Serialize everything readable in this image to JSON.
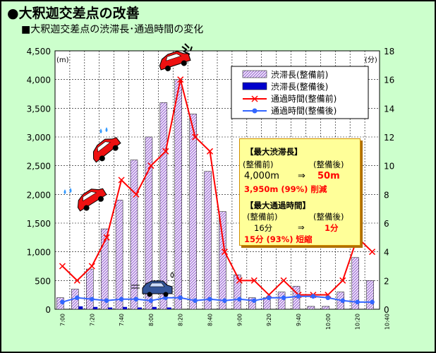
{
  "header": {
    "title": "●大釈迦交差点の改善",
    "subtitle": "■大釈迦交差点の渋滞長･通過時間の変化"
  },
  "chart_data": {
    "type": "bar",
    "y_left_unit": "(m)",
    "y_right_unit": "(分)",
    "ylim_left": [
      0,
      4500
    ],
    "ylim_right": [
      0,
      18
    ],
    "yticks_left": [
      "0",
      "500",
      "1,000",
      "1,500",
      "2,000",
      "2,500",
      "3,000",
      "3,500",
      "4,000",
      "4,500"
    ],
    "yticks_right": [
      "0",
      "2",
      "4",
      "6",
      "8",
      "10",
      "12",
      "14",
      "16",
      "18"
    ],
    "x_tick_labels": [
      "7:00",
      "7:20",
      "7:40",
      "8:00",
      "8:20",
      "8:40",
      "9:00",
      "9:20",
      "9:40",
      "10:00",
      "10:20",
      "10:40"
    ],
    "x_count": 22,
    "series": [
      {
        "name": "渋滞長(整備前)",
        "kind": "bar",
        "axis": "left",
        "color": "#bb99dd",
        "values": [
          200,
          350,
          700,
          1400,
          1900,
          2600,
          3000,
          3600,
          4000,
          3400,
          2400,
          1700,
          600,
          200,
          200,
          300,
          400,
          50,
          50,
          300,
          900,
          500
        ]
      },
      {
        "name": "渋滞長(整備後)",
        "kind": "bar",
        "axis": "left",
        "color": "#0000cc",
        "values": [
          0,
          50,
          40,
          30,
          40,
          30,
          40,
          30,
          0,
          0,
          0,
          0,
          0,
          0,
          0,
          0,
          0,
          0,
          0,
          0,
          0,
          0
        ]
      },
      {
        "name": "通過時間(整備前)",
        "kind": "line",
        "axis": "right",
        "color": "#ff0000",
        "marker": "x",
        "values": [
          3,
          2,
          3,
          5,
          9,
          8,
          10,
          11,
          16,
          12,
          11,
          4,
          2,
          2,
          1,
          2,
          1,
          1,
          1,
          2,
          5,
          4
        ]
      },
      {
        "name": "通過時間(整備後)",
        "kind": "line",
        "axis": "right",
        "color": "#3366ff",
        "marker": "dot",
        "values": [
          0.5,
          0.8,
          0.7,
          0.6,
          0.7,
          0.7,
          0.6,
          0.8,
          0.8,
          0.6,
          0.7,
          0.6,
          0.7,
          0.6,
          0.8,
          0.8,
          0.9,
          0.9,
          0.8,
          0.6,
          0.5,
          0.5
        ]
      }
    ],
    "grid": true,
    "legend_position": "top-right"
  },
  "infobox": {
    "max_queue_heading": "【最大渋滞長】",
    "before_label": "(整備前)",
    "after_label": "(整備後)",
    "queue_before": "4,000m",
    "arrow": "⇒",
    "queue_after": "50m",
    "queue_reduction": "3,950m (99%) 削減",
    "max_time_heading": "【最大通過時間】",
    "time_before": "16分",
    "time_after": "1分",
    "time_reduction": "15分 (93%) 短縮"
  },
  "colors": {
    "background": "#ccffcc",
    "plot_area": "#ffffff",
    "car_red": "#ee1111",
    "car_blue": "#335599"
  },
  "icons": [
    "red-car-icon",
    "blue-car-icon",
    "impact-mark-icon",
    "sweat-drop-icon"
  ]
}
